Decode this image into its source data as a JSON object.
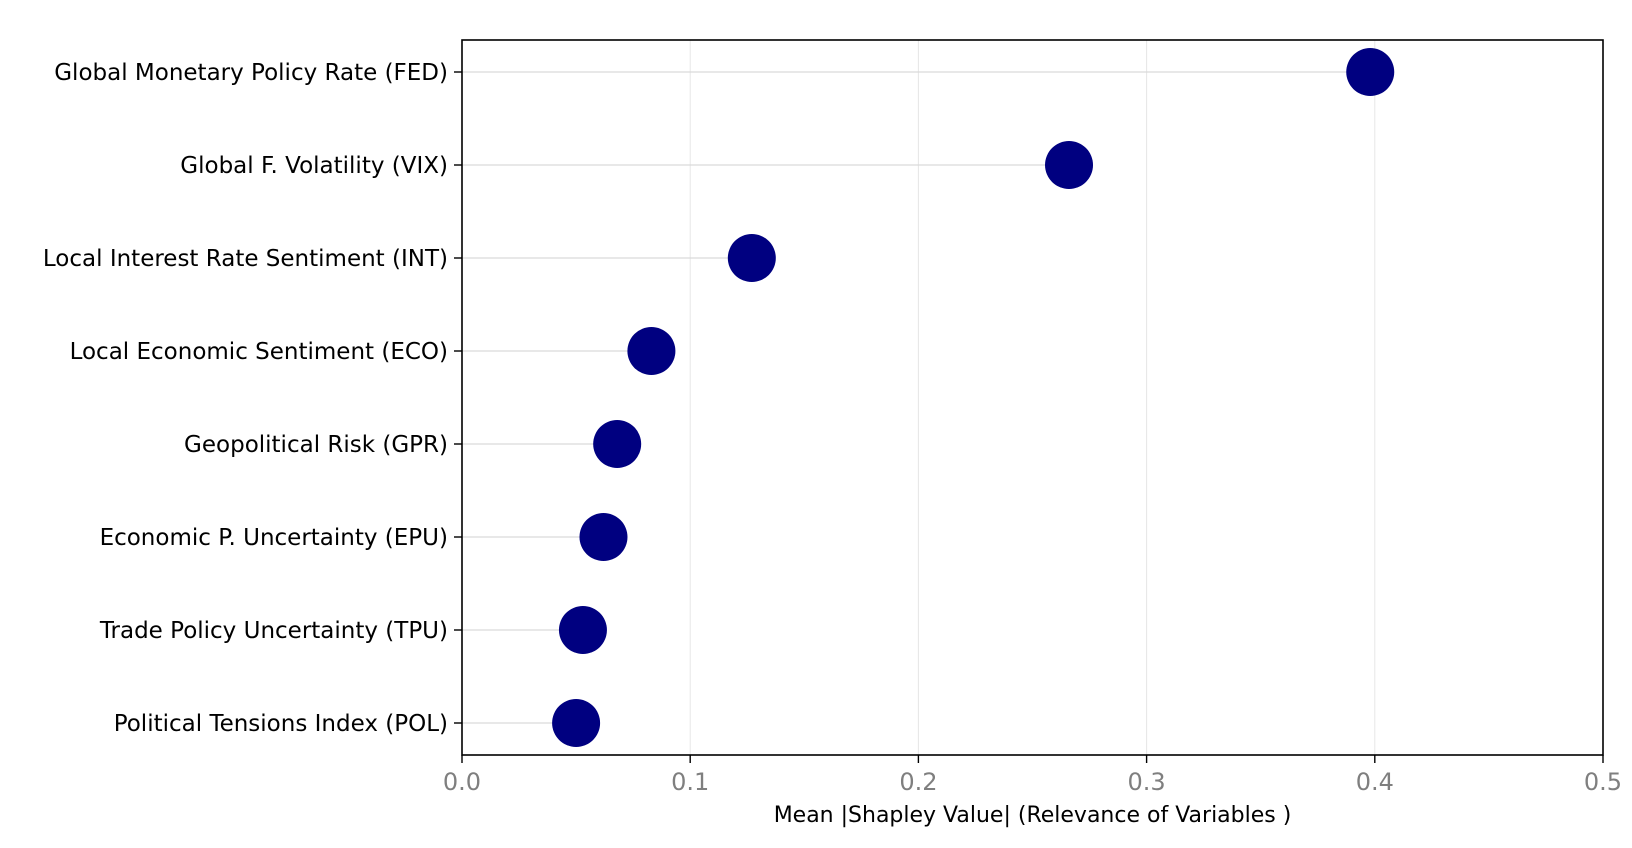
{
  "chart_data": {
    "type": "scatter",
    "orientation": "horizontal-lollipop",
    "title": "",
    "xlabel": "Mean |Shapley Value| (Relevance of Variables )",
    "ylabel": "",
    "xlim": [
      0,
      0.5
    ],
    "xticks": [
      0,
      0.1,
      0.2,
      0.3,
      0.4,
      0.5
    ],
    "xtick_labels": [
      "0.0",
      "0.1",
      "0.2",
      "0.3",
      "0.4",
      "0.5"
    ],
    "grid": "vertical",
    "legend": "none",
    "marker_color": "#000080",
    "categories": [
      "Global Monetary Policy Rate (FED)",
      "Global F. Volatility (VIX)",
      "Local Interest Rate Sentiment (INT)",
      "Local Economic Sentiment (ECO)",
      "Geopolitical Risk (GPR)",
      "Economic P. Uncertainty (EPU)",
      "Trade Policy Uncertainty (TPU)",
      "Political Tensions Index (POL)"
    ],
    "values": [
      0.398,
      0.266,
      0.127,
      0.083,
      0.068,
      0.062,
      0.053,
      0.05
    ]
  }
}
